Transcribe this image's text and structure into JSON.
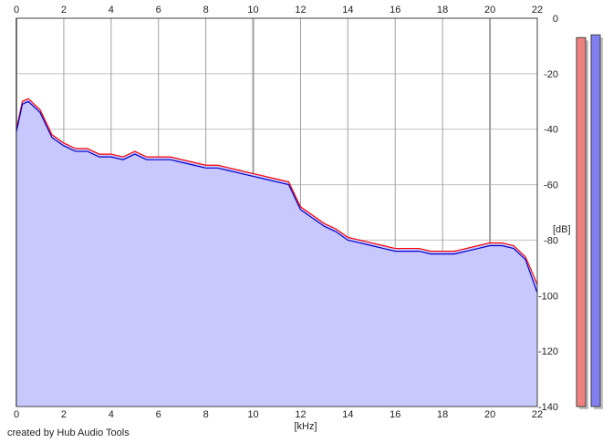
{
  "chart_data": {
    "type": "area",
    "xlabel": "[kHz]",
    "ylabel": "[dB]",
    "xlim": [
      0,
      22
    ],
    "ylim": [
      -140,
      0
    ],
    "x_ticks": [
      0,
      2,
      4,
      6,
      8,
      10,
      12,
      14,
      16,
      18,
      20,
      22
    ],
    "x_tick_labels": [
      "0",
      "2",
      "4",
      "6",
      "8",
      "10",
      "12",
      "14",
      "16",
      "18",
      "20",
      "22"
    ],
    "y_ticks": [
      0,
      -20,
      -40,
      -60,
      -80,
      -100,
      -120,
      -140
    ],
    "y_tick_labels": [
      "0",
      "-20",
      "-40",
      "-60",
      "-80",
      "-100",
      "-120",
      "-140"
    ],
    "grid": true,
    "series": [
      {
        "color": "#ff0000",
        "fill": "#c8c8ff",
        "x": [
          0,
          0.25,
          0.5,
          0.75,
          1,
          1.5,
          2,
          2.5,
          3,
          3.5,
          4,
          4.5,
          5,
          5.5,
          6,
          6.5,
          7,
          7.5,
          8,
          8.5,
          9,
          9.5,
          10,
          10.5,
          11,
          11.5,
          12,
          12.5,
          13,
          13.5,
          14,
          14.5,
          15,
          15.5,
          16,
          16.5,
          17,
          17.5,
          18,
          18.5,
          19,
          19.5,
          20,
          20.5,
          21,
          21.5,
          22
        ],
        "values": [
          -40,
          -30,
          -29,
          -31,
          -33,
          -42,
          -45,
          -47,
          -47,
          -49,
          -49,
          -50,
          -48,
          -50,
          -50,
          -50,
          -51,
          -52,
          -53,
          -53,
          -54,
          -55,
          -56,
          -57,
          -58,
          -59,
          -68,
          -71,
          -74,
          -76,
          -79,
          -80,
          -81,
          -82,
          -83,
          -83,
          -83,
          -84,
          -84,
          -84,
          -83,
          -82,
          -81,
          -81,
          -82,
          -86,
          -96
        ]
      },
      {
        "color": "#0000cc",
        "x": [
          0,
          0.25,
          0.5,
          0.75,
          1,
          1.5,
          2,
          2.5,
          3,
          3.5,
          4,
          4.5,
          5,
          5.5,
          6,
          6.5,
          7,
          7.5,
          8,
          8.5,
          9,
          9.5,
          10,
          10.5,
          11,
          11.5,
          12,
          12.5,
          13,
          13.5,
          14,
          14.5,
          15,
          15.5,
          16,
          16.5,
          17,
          17.5,
          18,
          18.5,
          19,
          19.5,
          20,
          20.5,
          21,
          21.5,
          22
        ],
        "values": [
          -41,
          -31,
          -30,
          -32,
          -34,
          -43,
          -46,
          -48,
          -48,
          -50,
          -50,
          -51,
          -49,
          -51,
          -51,
          -51,
          -52,
          -53,
          -54,
          -54,
          -55,
          -56,
          -57,
          -58,
          -59,
          -60,
          -69,
          -72,
          -75,
          -77,
          -80,
          -81,
          -82,
          -83,
          -84,
          -84,
          -84,
          -85,
          -85,
          -85,
          -84,
          -83,
          -82,
          -82,
          -83,
          -87,
          -99
        ]
      }
    ],
    "level_meters": [
      {
        "channel": "left",
        "color": "#f08080",
        "value_db": -7
      },
      {
        "channel": "right",
        "color": "#8080f0",
        "value_db": -6
      }
    ]
  },
  "footer": {
    "credit": "created by Hub Audio Tools"
  }
}
